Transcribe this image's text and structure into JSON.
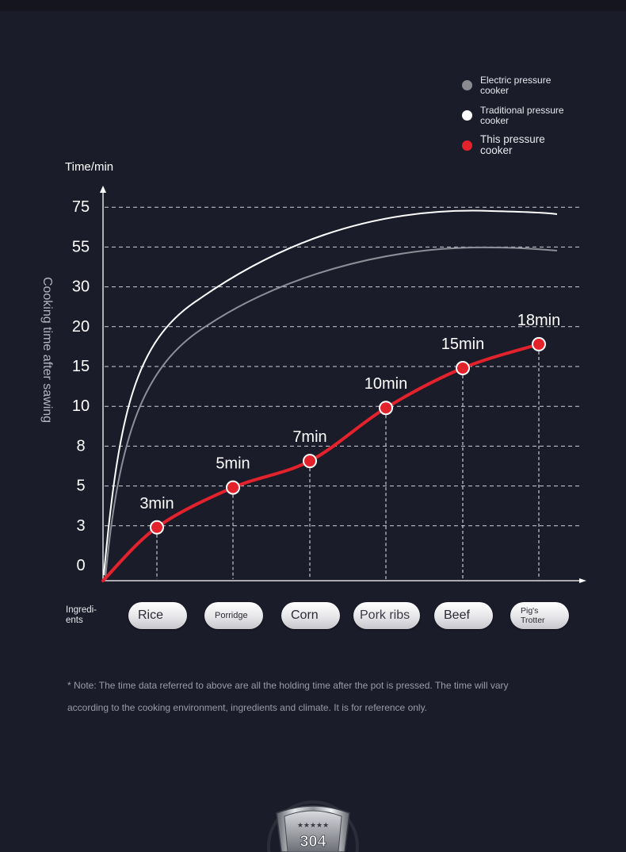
{
  "legend": [
    {
      "label": "Electric pressure cooker",
      "color": "#8a8a92"
    },
    {
      "label": "Traditional pressure cooker",
      "color": "#ffffff"
    },
    {
      "label": "This pressure cooker",
      "color": "#e3222c"
    }
  ],
  "ingredients_label": "Ingredi-\nents",
  "note": "* Note: The time data referred to above are all the holding time after the pot is pressed. The time will vary according to the cooking environment, ingredients and climate. It is for reference only.",
  "badge": {
    "text": "304",
    "icon": "steel-304-shield-icon"
  },
  "chart_data": {
    "type": "line",
    "ylabel": "Cooking time after sawing",
    "yunit": "Time/min",
    "yticks": [
      "0",
      "3",
      "5",
      "8",
      "10",
      "15",
      "20",
      "30",
      "55",
      "75"
    ],
    "ylim": [
      0,
      75
    ],
    "grid": true,
    "categories": [
      "Rice",
      "Porridge",
      "Corn",
      "Pork ribs",
      "Beef",
      "Pig's Trotter"
    ],
    "series": [
      {
        "name": "This pressure cooker",
        "color": "#e3222c",
        "values": [
          3,
          5,
          7,
          10,
          15,
          18
        ],
        "labels": [
          "3min",
          "5min",
          "7min",
          "10min",
          "15min",
          "18min"
        ]
      },
      {
        "name": "Traditional pressure cooker",
        "color": "#ffffff"
      },
      {
        "name": "Electric pressure cooker",
        "color": "#8a8a92"
      }
    ],
    "legend_position": "top-right"
  }
}
